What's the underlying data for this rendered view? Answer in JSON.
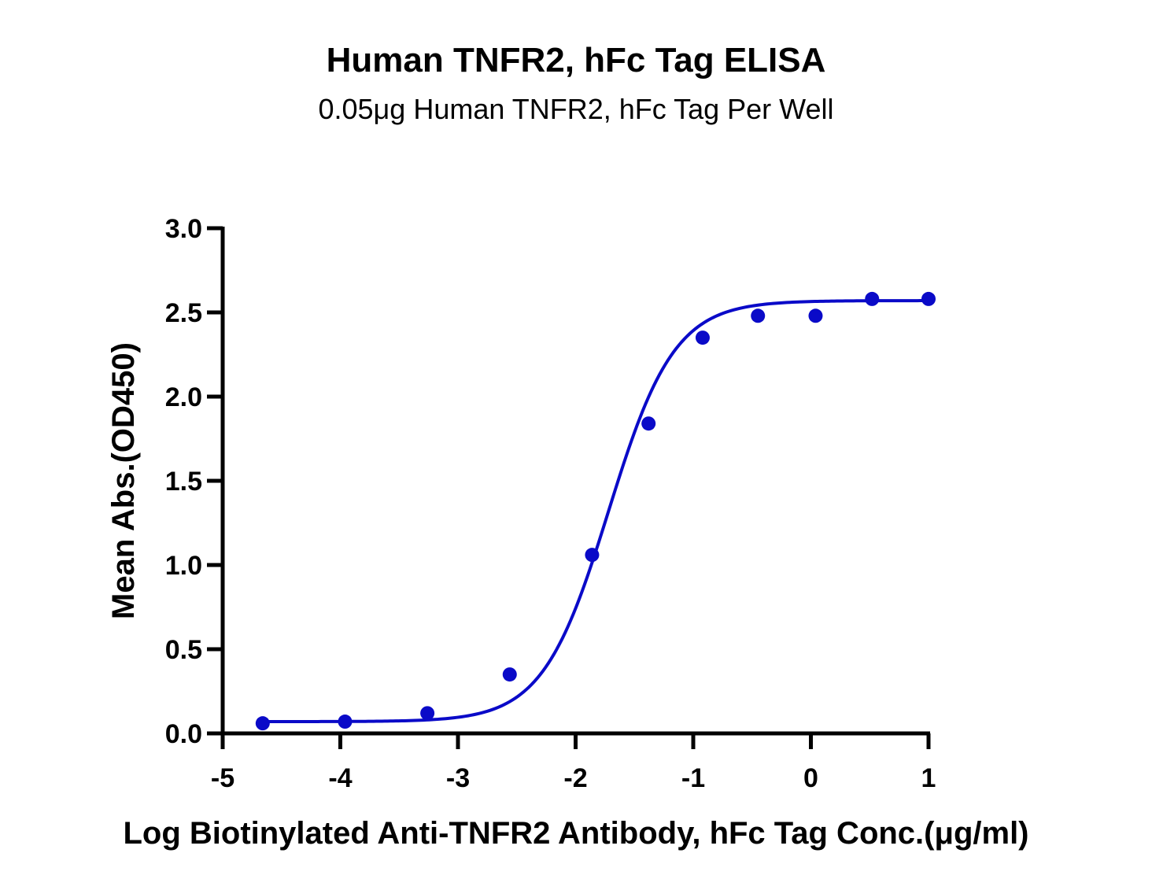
{
  "chart_data": {
    "type": "scatter",
    "title": "Human TNFR2, hFc Tag ELISA",
    "subtitle": "0.05μg Human TNFR2, hFc Tag Per Well",
    "xlabel": "Log Biotinylated Anti-TNFR2 Antibody, hFc Tag Conc.(μg/ml)",
    "ylabel": "Mean Abs.(OD450)",
    "xlim": [
      -5,
      1
    ],
    "ylim": [
      0,
      3.0
    ],
    "x_ticks": [
      -5,
      -4,
      -3,
      -2,
      -1,
      0,
      1
    ],
    "x_tick_labels": [
      "-5",
      "-4",
      "-3",
      "-2",
      "-1",
      "0",
      "1"
    ],
    "y_ticks": [
      0,
      0.5,
      1.0,
      1.5,
      2.0,
      2.5,
      3.0
    ],
    "y_tick_labels": [
      "0.0",
      "0.5",
      "1.0",
      "1.5",
      "2.0",
      "2.5",
      "3.0"
    ],
    "grid": false,
    "color": "#0a0ac8",
    "series": [
      {
        "points": {
          "x": [
            -4.66,
            -3.96,
            -3.26,
            -2.56,
            -1.86,
            -1.38,
            -0.92,
            -0.45,
            0.04,
            0.52,
            1.0
          ],
          "y": [
            0.06,
            0.07,
            0.12,
            0.35,
            1.06,
            1.84,
            2.35,
            2.48,
            2.48,
            2.58,
            2.58
          ]
        },
        "fit": {
          "model": "4PL",
          "bottom": 0.07,
          "top": 2.57,
          "log_ec50": -1.72,
          "hill": 1.55
        }
      }
    ]
  }
}
